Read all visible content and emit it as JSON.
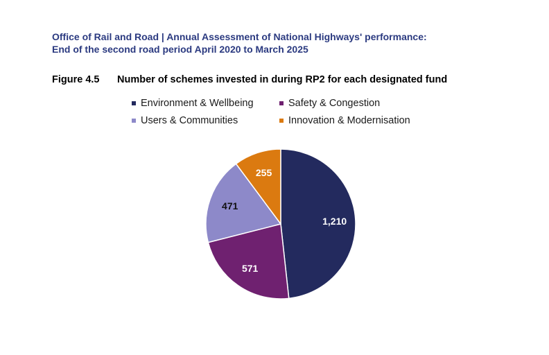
{
  "header": {
    "line1": "Office of Rail and Road | Annual Assessment of National Highways' performance:",
    "line2": "End of the second road period April 2020 to March 2025"
  },
  "figure": {
    "number": "Figure 4.5",
    "title": "Number of schemes invested in during RP2 for each designated fund"
  },
  "chart_data": {
    "type": "pie",
    "title": "Number of schemes invested in during RP2 for each designated fund",
    "legend_placement": "top",
    "slices": [
      {
        "label": "Environment & Wellbeing",
        "value": 1210,
        "display": "1,210",
        "color": "#232a5e",
        "text_color": "#ffffff"
      },
      {
        "label": "Safety & Congestion",
        "value": 571,
        "display": "571",
        "color": "#6f2170",
        "text_color": "#ffffff"
      },
      {
        "label": "Users & Communities",
        "value": 471,
        "display": "471",
        "color": "#8d89c9",
        "text_color": "#111111"
      },
      {
        "label": "Innovation & Modernisation",
        "value": 255,
        "display": "255",
        "color": "#db7a10",
        "text_color": "#ffffff"
      }
    ]
  }
}
